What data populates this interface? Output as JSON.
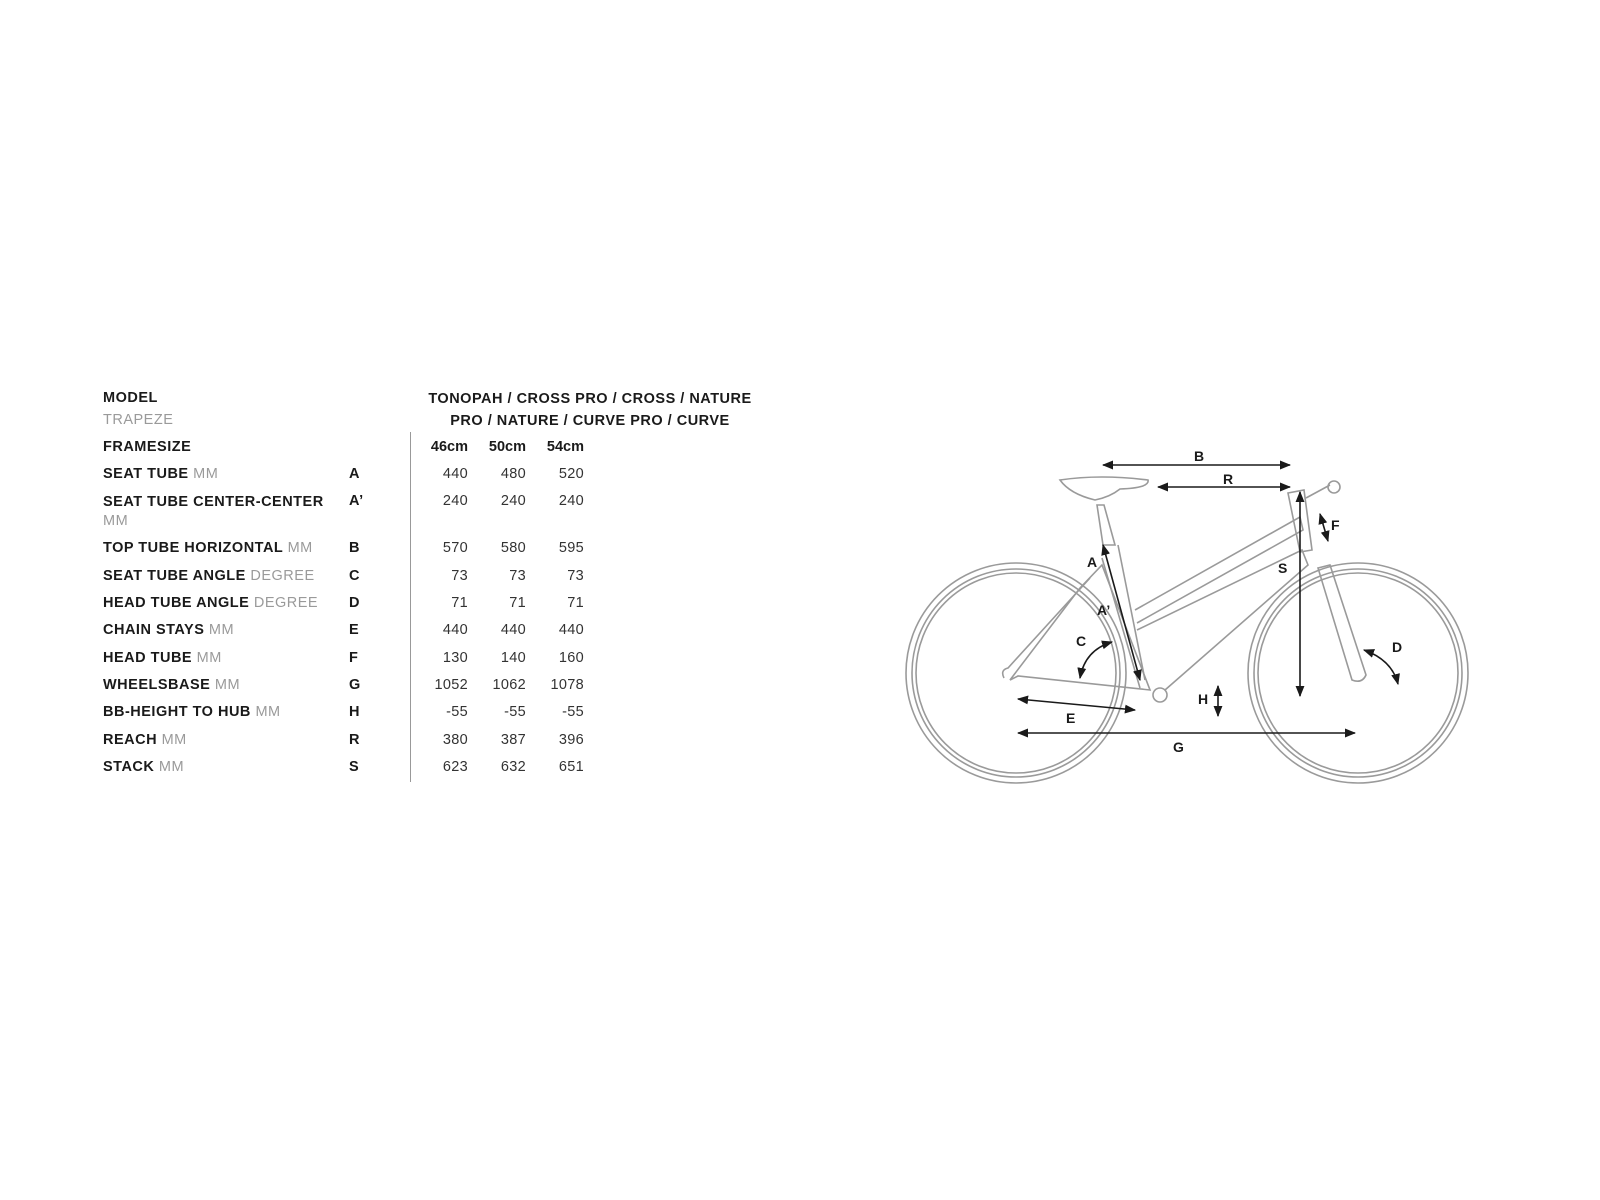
{
  "header": {
    "model_label": "MODEL",
    "model_sub": "TRAPEZE",
    "models_line1": "TONOPAH / CROSS PRO / CROSS / NATURE",
    "models_line2": "PRO / NATURE / CURVE PRO / CURVE",
    "framesize_label": "FRAMESIZE",
    "sizes": [
      "46cm",
      "50cm",
      "54cm"
    ]
  },
  "rows": [
    {
      "name": "SEAT TUBE",
      "unit": "MM",
      "code": "A",
      "values": [
        "440",
        "480",
        "520"
      ]
    },
    {
      "name": "SEAT TUBE CENTER-CENTER",
      "unit": "MM",
      "code": "A’",
      "values": [
        "240",
        "240",
        "240"
      ]
    },
    {
      "name": "TOP TUBE HORIZONTAL",
      "unit": "MM",
      "code": "B",
      "values": [
        "570",
        "580",
        "595"
      ]
    },
    {
      "name": "SEAT TUBE ANGLE",
      "unit": "DEGREE",
      "code": "C",
      "values": [
        "73",
        "73",
        "73"
      ]
    },
    {
      "name": "HEAD TUBE ANGLE",
      "unit": "DEGREE",
      "code": "D",
      "values": [
        "71",
        "71",
        "71"
      ]
    },
    {
      "name": "CHAIN STAYS",
      "unit": "MM",
      "code": "E",
      "values": [
        "440",
        "440",
        "440"
      ]
    },
    {
      "name": "HEAD TUBE",
      "unit": "MM",
      "code": "F",
      "values": [
        "130",
        "140",
        "160"
      ]
    },
    {
      "name": "WHEELSBASE",
      "unit": "MM",
      "code": "G",
      "values": [
        "1052",
        "1062",
        "1078"
      ]
    },
    {
      "name": "BB-HEIGHT TO HUB",
      "unit": "MM",
      "code": "H",
      "values": [
        "-55",
        "-55",
        "-55"
      ]
    },
    {
      "name": "REACH",
      "unit": "MM",
      "code": "R",
      "values": [
        "380",
        "387",
        "396"
      ]
    },
    {
      "name": "STACK",
      "unit": "MM",
      "code": "S",
      "values": [
        "623",
        "632",
        "651"
      ]
    }
  ],
  "diagram": {
    "labels": {
      "A": "A",
      "A2": "A’",
      "B": "B",
      "C": "C",
      "D": "D",
      "E": "E",
      "F": "F",
      "G": "G",
      "H": "H",
      "R": "R",
      "S": "S"
    },
    "frame_color": "#9a9a9a",
    "arrow_color": "#1a1a1a"
  }
}
